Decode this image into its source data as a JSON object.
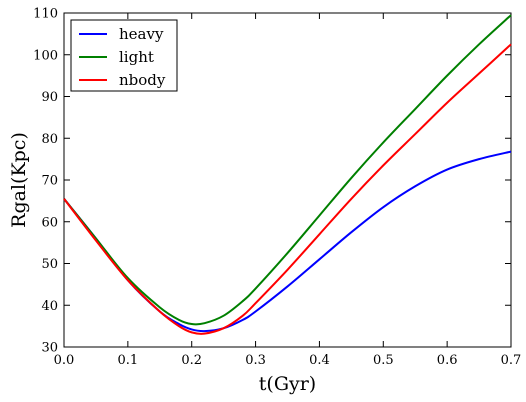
{
  "chart_data": {
    "type": "line",
    "title": "",
    "xlabel": "t(Gyr)",
    "ylabel": "Rgal(Kpc)",
    "xlim": [
      0.0,
      0.7
    ],
    "ylim": [
      30,
      110
    ],
    "xticks": [
      "0.0",
      "0.1",
      "0.2",
      "0.3",
      "0.4",
      "0.5",
      "0.6",
      "0.7"
    ],
    "yticks": [
      "30",
      "40",
      "50",
      "60",
      "70",
      "80",
      "90",
      "100",
      "110"
    ],
    "grid": false,
    "legend_position": "top-left",
    "series": [
      {
        "name": "heavy",
        "color": "#0000ff",
        "x": [
          0.0,
          0.05,
          0.1,
          0.15,
          0.18,
          0.2,
          0.22,
          0.25,
          0.28,
          0.3,
          0.35,
          0.4,
          0.45,
          0.5,
          0.55,
          0.6,
          0.65,
          0.7
        ],
        "y": [
          65.5,
          56,
          46,
          38.5,
          35.5,
          34.2,
          33.8,
          34.5,
          36.5,
          38.5,
          44.5,
          51,
          57.5,
          63.5,
          68.5,
          72.5,
          75,
          76.8
        ]
      },
      {
        "name": "light",
        "color": "#008000",
        "x": [
          0.0,
          0.05,
          0.1,
          0.15,
          0.18,
          0.2,
          0.22,
          0.25,
          0.28,
          0.3,
          0.35,
          0.4,
          0.45,
          0.5,
          0.55,
          0.6,
          0.65,
          0.7
        ],
        "y": [
          65.5,
          56,
          46.5,
          39.5,
          36.5,
          35.5,
          35.7,
          37.5,
          41,
          44,
          52.5,
          61.5,
          70.5,
          79,
          87,
          95,
          102.5,
          109.5
        ]
      },
      {
        "name": "nbody",
        "color": "#ff0000",
        "x": [
          0.0,
          0.05,
          0.1,
          0.15,
          0.18,
          0.2,
          0.22,
          0.25,
          0.28,
          0.3,
          0.35,
          0.4,
          0.45,
          0.5,
          0.55,
          0.6,
          0.65,
          0.7
        ],
        "y": [
          65.5,
          55.5,
          46,
          38.5,
          35,
          33.5,
          33.2,
          34.5,
          37.5,
          40.5,
          48.5,
          57,
          65.5,
          73.5,
          81,
          88.5,
          95.5,
          102.5
        ]
      }
    ]
  }
}
